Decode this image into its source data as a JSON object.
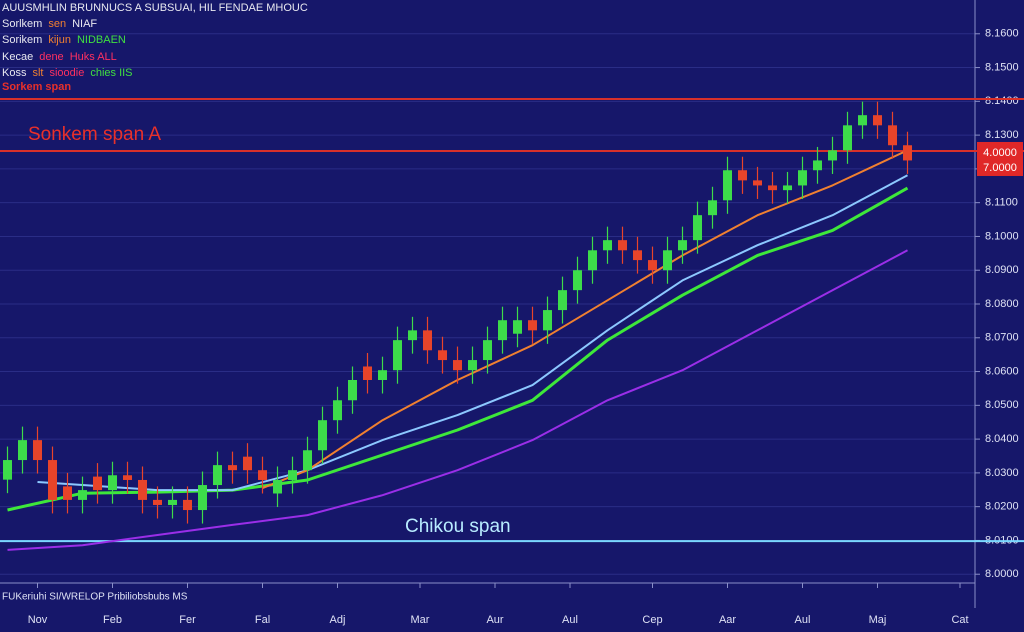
{
  "chart_data": {
    "type": "candlestick",
    "header": [
      [
        {
          "text": "AUUSMHLIN BRUNNUCS A SUBSUAI, HIL FENDAE MHOUC",
          "color": "#e8e8f0"
        }
      ],
      [
        {
          "text": "Sorlkem",
          "color": "#e8e8f0"
        },
        {
          "text": "sen",
          "color": "#f08030"
        },
        {
          "text": "NIAF",
          "color": "#e8e8f0"
        }
      ],
      [
        {
          "text": "Sorikem",
          "color": "#e8e8f0"
        },
        {
          "text": "kijun",
          "color": "#f08030"
        },
        {
          "text": "NIDBAEN",
          "color": "#40e040"
        }
      ],
      [
        {
          "text": "Kecae",
          "color": "#e8e8f0"
        },
        {
          "text": "dene",
          "color": "#ff3060"
        },
        {
          "text": "Huks ALL",
          "color": "#ff3060"
        }
      ],
      [
        {
          "text": "Koss",
          "color": "#e8e8f0"
        },
        {
          "text": "slt",
          "color": "#f08030"
        },
        {
          "text": "sioodie",
          "color": "#ff3060"
        },
        {
          "text": "chies IIS",
          "color": "#40e040"
        }
      ],
      [
        {
          "text": "Sorkem span",
          "color": "#e8302a"
        }
      ]
    ],
    "annotations": [
      {
        "text": "Sonkem span A",
        "color": "#e8302a"
      },
      {
        "text": "Chikou span",
        "color": "#b8ecff"
      }
    ],
    "footnote": "FUKeriuhi SI/WRELOP Pribiliobsbubs MS",
    "price_labels": [
      "4.0000",
      "7.0000"
    ],
    "xlim": [
      -0.5,
      64.5
    ],
    "xticks": [
      {
        "value": 2,
        "label": "Nov"
      },
      {
        "value": 7,
        "label": "Feb"
      },
      {
        "value": 12,
        "label": "Fer"
      },
      {
        "value": 17,
        "label": "Fal"
      },
      {
        "value": 22,
        "label": "Adj"
      },
      {
        "value": 27.5,
        "label": "Mar"
      },
      {
        "value": 32.5,
        "label": "Aur"
      },
      {
        "value": 37.5,
        "label": "Aul"
      },
      {
        "value": 43,
        "label": "Cep"
      },
      {
        "value": 48,
        "label": "Aar"
      },
      {
        "value": 53,
        "label": "Aul"
      },
      {
        "value": 58,
        "label": "Maj"
      },
      {
        "value": 63.5,
        "label": "Cat"
      }
    ],
    "ylim": [
      7.99,
      8.17
    ],
    "yticks": [
      {
        "value": 8.0,
        "label": "8.0000"
      },
      {
        "value": 8.01,
        "label": "8.0100"
      },
      {
        "value": 8.02,
        "label": "8.0200"
      },
      {
        "value": 8.03,
        "label": "8.0300"
      },
      {
        "value": 8.04,
        "label": "8.0400"
      },
      {
        "value": 8.05,
        "label": "8.0500"
      },
      {
        "value": 8.06,
        "label": "8.0600"
      },
      {
        "value": 8.07,
        "label": "8.0700"
      },
      {
        "value": 8.08,
        "label": "8.0800"
      },
      {
        "value": 8.09,
        "label": "8.0900"
      },
      {
        "value": 8.1,
        "label": "8.1000"
      },
      {
        "value": 8.11,
        "label": "8.1100"
      },
      {
        "value": 8.12,
        "label": "8.1200"
      },
      {
        "value": 8.13,
        "label": "8.1300"
      },
      {
        "value": 8.14,
        "label": "8.1400"
      },
      {
        "value": 8.15,
        "label": "8.1500"
      },
      {
        "value": 8.16,
        "label": "8.1600"
      }
    ],
    "grid": true,
    "up_color": "#3ddc4a",
    "down_color": "#e8442a",
    "open": [
      8.028,
      8.0338,
      8.0397,
      8.0338,
      8.026,
      8.022,
      8.0289,
      8.0249,
      8.0293,
      8.0279,
      8.022,
      8.0205,
      8.022,
      8.019,
      8.0264,
      8.0323,
      8.0348,
      8.0308,
      8.0239,
      8.0279,
      8.0308,
      8.0367,
      8.0456,
      8.0515,
      8.0615,
      8.0575,
      8.0604,
      8.0693,
      8.0722,
      8.0663,
      8.0634,
      8.0604,
      8.0634,
      8.0693,
      8.0712,
      8.0752,
      8.0722,
      8.0782,
      8.0841,
      8.09,
      8.0959,
      8.0989,
      8.0959,
      8.093,
      8.09,
      8.0959,
      8.0989,
      8.1063,
      8.1107,
      8.1196,
      8.1166,
      8.1151,
      8.1137,
      8.1151,
      8.1196,
      8.1225,
      8.1255,
      8.1329,
      8.1359,
      8.1329,
      8.127
    ],
    "high": [
      8.0378,
      8.0437,
      8.0437,
      8.0378,
      8.03,
      8.0289,
      8.0329,
      8.0333,
      8.0333,
      8.0319,
      8.026,
      8.026,
      8.026,
      8.0304,
      8.0363,
      8.0363,
      8.0388,
      8.0348,
      8.0319,
      8.0348,
      8.0407,
      8.0496,
      8.0555,
      8.0615,
      8.0655,
      8.0644,
      8.0733,
      8.0762,
      8.0762,
      8.0703,
      8.0674,
      8.0674,
      8.0733,
      8.0792,
      8.0792,
      8.0792,
      8.0822,
      8.0881,
      8.094,
      8.0999,
      8.1029,
      8.1029,
      8.0999,
      8.097,
      8.0999,
      8.1029,
      8.1103,
      8.1147,
      8.1236,
      8.1236,
      8.1206,
      8.1191,
      8.1191,
      8.1236,
      8.1265,
      8.1295,
      8.1369,
      8.1399,
      8.1399,
      8.1369,
      8.131
    ],
    "low": [
      8.024,
      8.0298,
      8.0298,
      8.018,
      8.018,
      8.018,
      8.0209,
      8.0209,
      8.0239,
      8.018,
      8.0165,
      8.0165,
      8.015,
      8.015,
      8.0224,
      8.0268,
      8.0268,
      8.0239,
      8.0199,
      8.0239,
      8.0268,
      8.0327,
      8.0416,
      8.0475,
      8.0535,
      8.0535,
      8.0564,
      8.0653,
      8.0623,
      8.0594,
      8.0564,
      8.0564,
      8.0594,
      8.0653,
      8.0672,
      8.0682,
      8.0682,
      8.0742,
      8.0801,
      8.086,
      8.0919,
      8.0919,
      8.089,
      8.086,
      8.086,
      8.0919,
      8.0949,
      8.1023,
      8.1067,
      8.1126,
      8.1111,
      8.1097,
      8.1097,
      8.1111,
      8.1156,
      8.1185,
      8.1215,
      8.1289,
      8.1289,
      8.123,
      8.1185
    ],
    "close": [
      8.0338,
      8.0397,
      8.0338,
      8.022,
      8.022,
      8.0249,
      8.0249,
      8.0293,
      8.0279,
      8.022,
      8.0205,
      8.022,
      8.019,
      8.0264,
      8.0323,
      8.0308,
      8.0308,
      8.0279,
      8.0279,
      8.0308,
      8.0367,
      8.0456,
      8.0515,
      8.0575,
      8.0575,
      8.0604,
      8.0693,
      8.0722,
      8.0663,
      8.0634,
      8.0604,
      8.0634,
      8.0693,
      8.0752,
      8.0752,
      8.0722,
      8.0782,
      8.0841,
      8.09,
      8.0959,
      8.0989,
      8.0959,
      8.093,
      8.09,
      8.0959,
      8.0989,
      8.1063,
      8.1107,
      8.1196,
      8.1166,
      8.1151,
      8.1137,
      8.1151,
      8.1196,
      8.1225,
      8.1255,
      8.1329,
      8.1359,
      8.1329,
      8.127,
      8.1225
    ],
    "lines": [
      {
        "color": "#9a2ee8",
        "x": [
          0,
          5,
          10,
          15,
          20,
          25,
          30,
          35,
          40,
          45,
          50,
          55,
          60
        ],
        "values": [
          8.0072,
          8.0086,
          8.0116,
          8.0146,
          8.0175,
          8.0234,
          8.0308,
          8.0397,
          8.0515,
          8.0604,
          8.0722,
          8.0841,
          8.0959
        ]
      },
      {
        "color": "#3ee83a",
        "x": [
          0,
          5,
          10,
          15,
          20,
          25,
          30,
          35,
          40,
          45,
          50,
          55,
          60
        ],
        "values": [
          8.019,
          8.024,
          8.0243,
          8.0249,
          8.0279,
          8.0353,
          8.0427,
          8.0515,
          8.0693,
          8.0826,
          8.0944,
          8.1018,
          8.1143
        ]
      },
      {
        "color": "#8cc8ff",
        "x": [
          2,
          5,
          10,
          15,
          20,
          25,
          30,
          35,
          40,
          45,
          50,
          55,
          60
        ],
        "values": [
          8.0273,
          8.0264,
          8.0249,
          8.0249,
          8.0308,
          8.0397,
          8.0471,
          8.056,
          8.0722,
          8.087,
          8.0974,
          8.1063,
          8.1181
        ]
      },
      {
        "color": "#f08030",
        "x": [
          17,
          20,
          25,
          30,
          35,
          40,
          45,
          50,
          55,
          60
        ],
        "values": [
          8.0255,
          8.0308,
          8.0456,
          8.0575,
          8.0678,
          8.0811,
          8.0944,
          8.1063,
          8.1151,
          8.1255
        ]
      }
    ],
    "hlines": [
      {
        "value": 8.1407,
        "color": "#d8302a"
      },
      {
        "value": 8.1253,
        "color": "#d8302a"
      },
      {
        "value": 8.0098,
        "color": "#7ad8ff"
      }
    ]
  }
}
